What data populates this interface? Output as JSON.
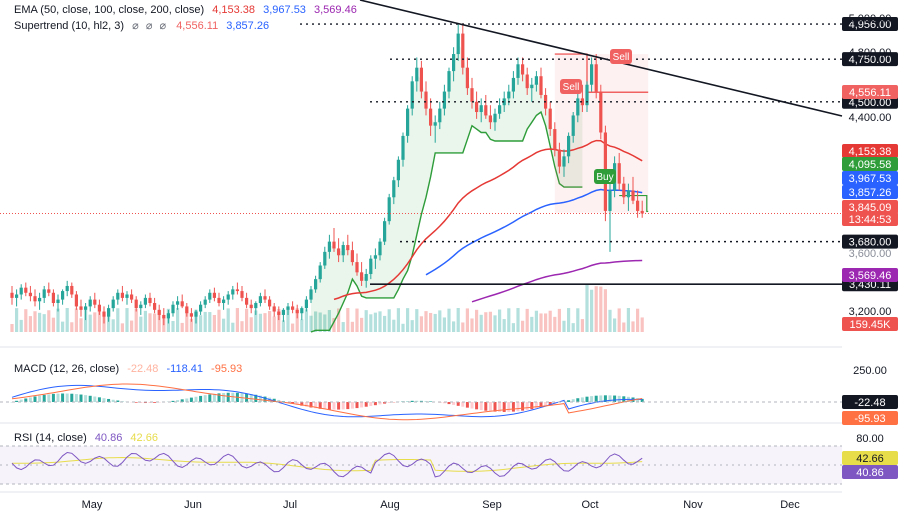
{
  "legends": {
    "ema": {
      "label": "EMA (50, close, 100, close, 200, close)",
      "v1": "4,153.38",
      "v2": "3,967.53",
      "v3": "3,569.46"
    },
    "st": {
      "label": "Supertrend (10, hl2, 3)",
      "icons": "⌀ ⌀ ⌀",
      "v1": "4,556.11",
      "v2": "3,857.26"
    },
    "macd": {
      "label": "MACD (12, 26, close)",
      "v1": "-22.48",
      "v2": "-118.41",
      "v3": "-95.93"
    },
    "rsi": {
      "label": "RSI (14, close)",
      "v1": "40.86",
      "v2": "42.66"
    }
  },
  "colors": {
    "up": "#26a69a",
    "down": "#ef5350",
    "ema50": "#e53935",
    "ema100": "#2962ff",
    "ema200": "#9c27b0",
    "st_up": "#2e9d3a",
    "st_down": "#f06262",
    "macd": "#2962ff",
    "signal": "#ff7043",
    "rsi": "#7e57c2",
    "rsi_ma": "#e7dc4a"
  },
  "chart_data": [
    {
      "type": "candlestick",
      "x": [
        "May",
        "Jun",
        "Jul",
        "Aug",
        "Sep",
        "Oct",
        "Nov",
        "Dec"
      ],
      "price_ticks": [
        "5,000.00",
        "4,800.00",
        "4,400.00",
        "3,200.00"
      ],
      "ohlc": [
        [
          3380,
          3420,
          3310,
          3350
        ],
        [
          3350,
          3400,
          3300,
          3370
        ],
        [
          3370,
          3430,
          3340,
          3410
        ],
        [
          3410,
          3440,
          3360,
          3380
        ],
        [
          3380,
          3420,
          3330,
          3360
        ],
        [
          3360,
          3400,
          3300,
          3330
        ],
        [
          3330,
          3380,
          3280,
          3350
        ],
        [
          3350,
          3420,
          3320,
          3400
        ],
        [
          3400,
          3440,
          3360,
          3380
        ],
        [
          3380,
          3400,
          3300,
          3320
        ],
        [
          3320,
          3370,
          3270,
          3340
        ],
        [
          3340,
          3400,
          3310,
          3390
        ],
        [
          3390,
          3450,
          3360,
          3420
        ],
        [
          3420,
          3440,
          3350,
          3370
        ],
        [
          3370,
          3390,
          3280,
          3300
        ],
        [
          3300,
          3340,
          3240,
          3280
        ],
        [
          3280,
          3320,
          3220,
          3300
        ],
        [
          3300,
          3360,
          3270,
          3340
        ],
        [
          3340,
          3380,
          3290,
          3310
        ],
        [
          3310,
          3340,
          3250,
          3270
        ],
        [
          3270,
          3300,
          3200,
          3240
        ],
        [
          3240,
          3310,
          3210,
          3290
        ],
        [
          3290,
          3360,
          3270,
          3340
        ],
        [
          3340,
          3400,
          3310,
          3380
        ],
        [
          3380,
          3420,
          3330,
          3350
        ],
        [
          3350,
          3390,
          3310,
          3370
        ],
        [
          3370,
          3400,
          3320,
          3340
        ],
        [
          3340,
          3360,
          3270,
          3290
        ],
        [
          3290,
          3330,
          3250,
          3310
        ],
        [
          3310,
          3370,
          3290,
          3350
        ],
        [
          3350,
          3380,
          3300,
          3320
        ],
        [
          3320,
          3350,
          3260,
          3280
        ],
        [
          3280,
          3310,
          3220,
          3250
        ],
        [
          3250,
          3290,
          3190,
          3230
        ],
        [
          3230,
          3280,
          3200,
          3260
        ],
        [
          3260,
          3330,
          3240,
          3310
        ],
        [
          3310,
          3360,
          3280,
          3330
        ],
        [
          3330,
          3370,
          3290,
          3300
        ],
        [
          3300,
          3320,
          3240,
          3260
        ],
        [
          3260,
          3290,
          3210,
          3240
        ],
        [
          3240,
          3280,
          3200,
          3270
        ],
        [
          3270,
          3330,
          3250,
          3310
        ],
        [
          3310,
          3360,
          3290,
          3340
        ],
        [
          3340,
          3400,
          3320,
          3380
        ],
        [
          3380,
          3410,
          3330,
          3350
        ],
        [
          3350,
          3380,
          3300,
          3320
        ],
        [
          3320,
          3360,
          3280,
          3340
        ],
        [
          3340,
          3390,
          3310,
          3370
        ],
        [
          3370,
          3420,
          3340,
          3400
        ],
        [
          3400,
          3440,
          3370,
          3390
        ],
        [
          3390,
          3420,
          3330,
          3350
        ],
        [
          3350,
          3380,
          3290,
          3310
        ],
        [
          3310,
          3340,
          3260,
          3290
        ],
        [
          3290,
          3330,
          3250,
          3320
        ],
        [
          3320,
          3380,
          3300,
          3360
        ],
        [
          3360,
          3400,
          3320,
          3340
        ],
        [
          3340,
          3360,
          3280,
          3300
        ],
        [
          3300,
          3320,
          3240,
          3270
        ],
        [
          3270,
          3300,
          3220,
          3250
        ],
        [
          3250,
          3290,
          3210,
          3280
        ],
        [
          3280,
          3320,
          3250,
          3300
        ],
        [
          3300,
          3330,
          3260,
          3280
        ],
        [
          3280,
          3310,
          3230,
          3260
        ],
        [
          3260,
          3300,
          3220,
          3290
        ],
        [
          3290,
          3360,
          3270,
          3340
        ],
        [
          3340,
          3420,
          3320,
          3400
        ],
        [
          3400,
          3480,
          3380,
          3460
        ],
        [
          3460,
          3560,
          3440,
          3540
        ],
        [
          3540,
          3650,
          3520,
          3620
        ],
        [
          3620,
          3720,
          3580,
          3680
        ],
        [
          3680,
          3760,
          3620,
          3640
        ],
        [
          3640,
          3700,
          3560,
          3600
        ],
        [
          3600,
          3680,
          3560,
          3660
        ],
        [
          3660,
          3720,
          3600,
          3630
        ],
        [
          3630,
          3680,
          3540,
          3560
        ],
        [
          3560,
          3610,
          3480,
          3500
        ],
        [
          3500,
          3560,
          3420,
          3450
        ],
        [
          3450,
          3520,
          3410,
          3490
        ],
        [
          3490,
          3600,
          3460,
          3580
        ],
        [
          3580,
          3640,
          3520,
          3600
        ],
        [
          3600,
          3700,
          3570,
          3680
        ],
        [
          3680,
          3820,
          3660,
          3800
        ],
        [
          3800,
          3960,
          3780,
          3940
        ],
        [
          3940,
          4060,
          3900,
          4040
        ],
        [
          4040,
          4180,
          4000,
          4160
        ],
        [
          4160,
          4320,
          4120,
          4300
        ],
        [
          4300,
          4480,
          4260,
          4460
        ],
        [
          4460,
          4650,
          4420,
          4620
        ],
        [
          4620,
          4760,
          4560,
          4700
        ],
        [
          4700,
          4740,
          4520,
          4560
        ],
        [
          4560,
          4620,
          4420,
          4460
        ],
        [
          4460,
          4520,
          4300,
          4360
        ],
        [
          4360,
          4420,
          4260,
          4380
        ],
        [
          4380,
          4500,
          4340,
          4460
        ],
        [
          4460,
          4600,
          4420,
          4560
        ],
        [
          4560,
          4700,
          4520,
          4680
        ],
        [
          4680,
          4820,
          4620,
          4780
        ],
        [
          4780,
          4960,
          4740,
          4900
        ],
        [
          4900,
          4960,
          4660,
          4700
        ],
        [
          4700,
          4760,
          4540,
          4580
        ],
        [
          4580,
          4640,
          4460,
          4500
        ],
        [
          4500,
          4560,
          4400,
          4440
        ],
        [
          4440,
          4520,
          4380,
          4480
        ],
        [
          4480,
          4540,
          4400,
          4420
        ],
        [
          4420,
          4480,
          4340,
          4380
        ],
        [
          4380,
          4460,
          4330,
          4430
        ],
        [
          4430,
          4520,
          4400,
          4480
        ],
        [
          4480,
          4560,
          4440,
          4520
        ],
        [
          4520,
          4600,
          4480,
          4560
        ],
        [
          4560,
          4680,
          4520,
          4640
        ],
        [
          4640,
          4760,
          4600,
          4720
        ],
        [
          4720,
          4760,
          4620,
          4660
        ],
        [
          4660,
          4700,
          4540,
          4580
        ],
        [
          4580,
          4640,
          4500,
          4600
        ],
        [
          4600,
          4680,
          4560,
          4650
        ],
        [
          4650,
          4700,
          4520,
          4540
        ],
        [
          4540,
          4580,
          4420,
          4460
        ],
        [
          4460,
          4500,
          4300,
          4340
        ],
        [
          4340,
          4380,
          4180,
          4220
        ],
        [
          4220,
          4260,
          4080,
          4120
        ],
        [
          4120,
          4220,
          4060,
          4180
        ],
        [
          4180,
          4320,
          4140,
          4300
        ],
        [
          4300,
          4440,
          4260,
          4420
        ],
        [
          4420,
          4560,
          4380,
          4520
        ],
        [
          4520,
          4600,
          4440,
          4480
        ],
        [
          4480,
          4620,
          4440,
          4600
        ],
        [
          4600,
          4760,
          4560,
          4720
        ],
        [
          4720,
          4780,
          4520,
          4560
        ],
        [
          4560,
          4600,
          4280,
          4320
        ],
        [
          4320,
          4360,
          3800,
          3860
        ],
        [
          3860,
          4020,
          3620,
          3980
        ],
        [
          3980,
          4180,
          3940,
          4140
        ],
        [
          4140,
          4200,
          3980,
          4020
        ],
        [
          4020,
          4060,
          3900,
          3940
        ],
        [
          3940,
          4020,
          3860,
          3980
        ],
        [
          3980,
          4060,
          3900,
          3920
        ],
        [
          3920,
          3980,
          3820,
          3860
        ],
        [
          3860,
          3920,
          3820,
          3845
        ]
      ],
      "volume_last": "159.45K",
      "ema50_last": 4153.38,
      "ema100_last": 3967.53,
      "ema200_last": 3569.46,
      "supertrend": {
        "up_last": 3857.26,
        "down_last": 4556.11
      },
      "levels": [
        {
          "label": "4,956.00",
          "value": 4956
        },
        {
          "label": "4,750.00",
          "value": 4750
        },
        {
          "label": "4,500.00",
          "value": 4500
        },
        {
          "label": "3,680.00",
          "value": 3680
        },
        {
          "label": "3,430.11",
          "value": 3430.11
        }
      ],
      "right_labels": [
        {
          "text": "4,556.11",
          "color": "#f06262"
        },
        {
          "text": "4,153.38",
          "color": "#e53935"
        },
        {
          "text": "4,095.58",
          "color": "#2e9d3a"
        },
        {
          "text": "3,967.53",
          "color": "#2962ff"
        },
        {
          "text": "3,857.26",
          "color": "#2962ff"
        },
        {
          "text": "3,845.09",
          "color": "#ef5350"
        },
        {
          "text": "13:44:53",
          "color": "#ef5350"
        },
        {
          "text": "3,680.00",
          "color": "#131722"
        },
        {
          "text": "3,600.00",
          "color": "#131722"
        },
        {
          "text": "3,569.46",
          "color": "#9c27b0"
        },
        {
          "text": "3,430.11",
          "color": "#131722"
        },
        {
          "text": "159.45K",
          "color": "#ef5350"
        }
      ],
      "signals": [
        {
          "label": "Sell",
          "index": 103
        },
        {
          "label": "Sell",
          "index": 138
        },
        {
          "label": "Buy",
          "index": 135
        }
      ]
    },
    {
      "type": "line",
      "name": "MACD",
      "ticks": [
        "250.00"
      ],
      "labels_right": [
        {
          "text": "-22.48",
          "color": "#131722"
        },
        {
          "text": "-95.93",
          "color": "#ff7043"
        }
      ]
    },
    {
      "type": "line",
      "name": "RSI",
      "ticks": [
        "80.00"
      ],
      "labels_right": [
        {
          "text": "42.66",
          "color": "#e7dc4a"
        },
        {
          "text": "40.86",
          "color": "#7e57c2"
        }
      ]
    }
  ]
}
